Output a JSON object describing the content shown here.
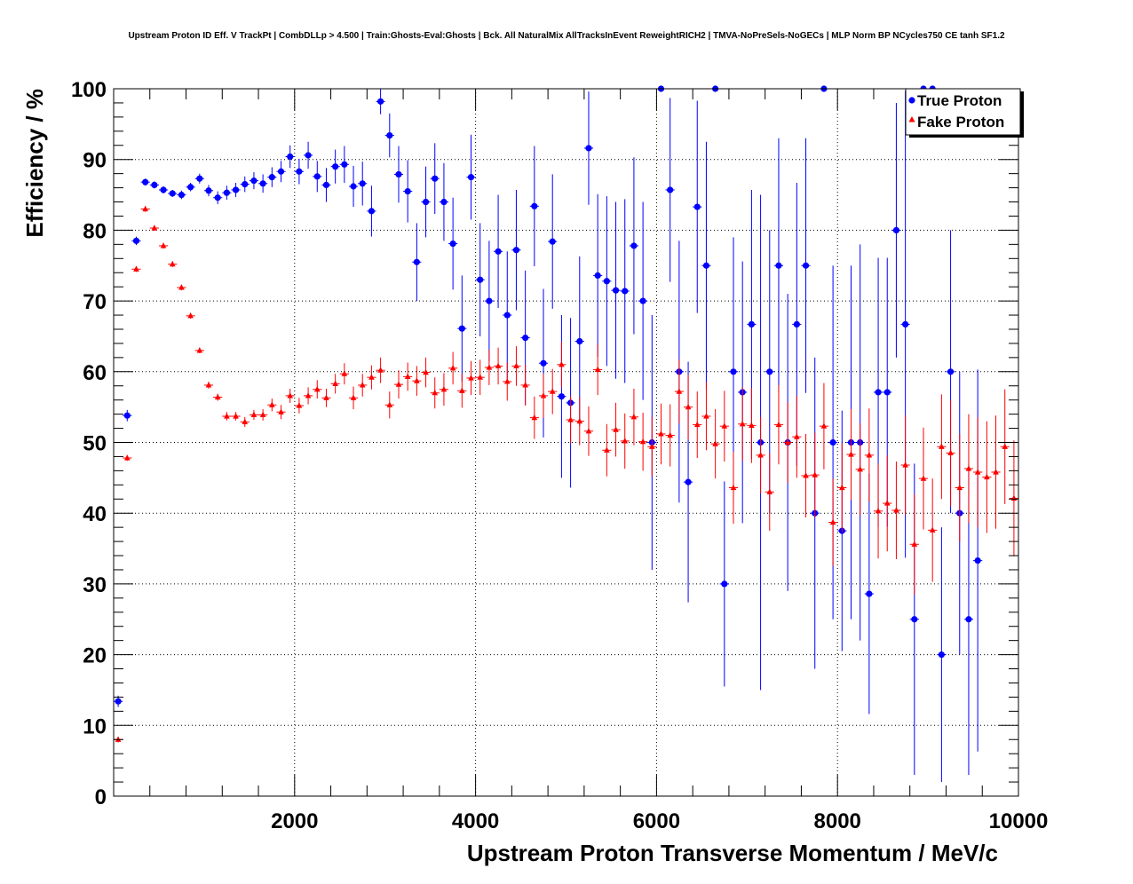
{
  "chart_data": {
    "type": "scatter",
    "title": "Upstream Proton ID Eff. V TrackPt | CombDLLp > 4.500 | Train:Ghosts-Eval:Ghosts | Bck. All NaturalMix AllTracksInEvent ReweightRICH2 | TMVA-NoPreSels-NoGECs | MLP Norm BP NCycles750 CE tanh SF1.2",
    "xlabel": "Upstream Proton Transverse Momentum / MeV/c",
    "ylabel": "Efficiency / %",
    "xlim": [
      0,
      10000
    ],
    "ylim": [
      0,
      100
    ],
    "x_ticks": [
      2000,
      4000,
      6000,
      8000,
      10000
    ],
    "y_ticks": [
      0,
      10,
      20,
      30,
      40,
      50,
      60,
      70,
      80,
      90,
      100
    ],
    "grid": true,
    "legend_position": "top-right",
    "bin_width": 100,
    "series": [
      {
        "name": "True Proton",
        "color": "#0000ff",
        "marker": "circle",
        "points": [
          [
            50,
            13.4,
            0.8
          ],
          [
            150,
            53.8,
            0.8
          ],
          [
            250,
            78.5,
            0.6
          ],
          [
            350,
            86.8,
            0.5
          ],
          [
            450,
            86.4,
            0.5
          ],
          [
            550,
            85.7,
            0.5
          ],
          [
            650,
            85.2,
            0.5
          ],
          [
            750,
            85.0,
            0.6
          ],
          [
            850,
            86.1,
            0.6
          ],
          [
            950,
            87.3,
            0.7
          ],
          [
            1050,
            85.6,
            0.8
          ],
          [
            1150,
            84.6,
            0.9
          ],
          [
            1250,
            85.3,
            1.0
          ],
          [
            1350,
            85.7,
            1.0
          ],
          [
            1450,
            86.5,
            1.1
          ],
          [
            1550,
            87.0,
            1.2
          ],
          [
            1650,
            86.6,
            1.3
          ],
          [
            1750,
            87.5,
            1.4
          ],
          [
            1850,
            88.3,
            1.5
          ],
          [
            1950,
            90.4,
            1.6
          ],
          [
            2050,
            88.3,
            1.8
          ],
          [
            2150,
            90.6,
            1.9
          ],
          [
            2250,
            87.6,
            2.2
          ],
          [
            2350,
            86.4,
            2.4
          ],
          [
            2450,
            89.0,
            2.4
          ],
          [
            2550,
            89.3,
            2.6
          ],
          [
            2650,
            86.2,
            2.9
          ],
          [
            2750,
            86.6,
            3.1
          ],
          [
            2850,
            82.7,
            3.6
          ],
          [
            2950,
            98.2,
            1.8
          ],
          [
            3050,
            93.4,
            3.1
          ],
          [
            3150,
            87.9,
            4.0
          ],
          [
            3250,
            85.5,
            4.4
          ],
          [
            3350,
            75.5,
            5.5
          ],
          [
            3450,
            84.0,
            5.0
          ],
          [
            3550,
            87.3,
            5.0
          ],
          [
            3650,
            84.0,
            5.5
          ],
          [
            3750,
            78.1,
            6.5
          ],
          [
            3850,
            66.1,
            7.5
          ],
          [
            3950,
            87.5,
            6.0
          ],
          [
            4050,
            73.0,
            8.0
          ],
          [
            4150,
            70.0,
            8.5
          ],
          [
            4250,
            77.0,
            8.0
          ],
          [
            4350,
            68.0,
            9.0
          ],
          [
            4450,
            77.2,
            8.5
          ],
          [
            4550,
            64.8,
            9.5
          ],
          [
            4650,
            83.4,
            8.5
          ],
          [
            4750,
            61.2,
            10.5
          ],
          [
            4850,
            78.4,
            9.5
          ],
          [
            4950,
            56.5,
            11.5
          ],
          [
            5050,
            55.6,
            12.0
          ],
          [
            5150,
            64.3,
            12.0
          ],
          [
            5250,
            91.6,
            8.0
          ],
          [
            5350,
            73.6,
            11.5
          ],
          [
            5450,
            72.8,
            12.0
          ],
          [
            5550,
            71.5,
            12.5
          ],
          [
            5650,
            71.4,
            13.0
          ],
          [
            5750,
            77.8,
            12.5
          ],
          [
            5850,
            70.0,
            14.0
          ],
          [
            5950,
            50.0,
            18.0
          ],
          [
            6050,
            100.0,
            0.0
          ],
          [
            6150,
            85.7,
            13.0
          ],
          [
            6250,
            60.0,
            18.5
          ],
          [
            6350,
            44.4,
            17.0
          ],
          [
            6450,
            83.3,
            15.0
          ],
          [
            6550,
            75.0,
            17.5
          ],
          [
            6650,
            100.0,
            0.0
          ],
          [
            6750,
            30.0,
            14.5
          ],
          [
            6850,
            60.0,
            19.0
          ],
          [
            6950,
            57.1,
            18.5
          ],
          [
            7050,
            66.7,
            19.0
          ],
          [
            7150,
            50.0,
            35.0
          ],
          [
            7250,
            60.0,
            20.0
          ],
          [
            7350,
            75.0,
            18.0
          ],
          [
            7450,
            50.0,
            21.0
          ],
          [
            7550,
            66.7,
            20.0
          ],
          [
            7650,
            75.0,
            18.0
          ],
          [
            7750,
            40.0,
            22.0
          ],
          [
            7850,
            100.0,
            0.0
          ],
          [
            7950,
            50.0,
            25.0
          ],
          [
            8050,
            37.5,
            17.0
          ],
          [
            8150,
            50.0,
            25.0
          ],
          [
            8250,
            50.0,
            28.0
          ],
          [
            8350,
            28.6,
            17.0
          ],
          [
            8450,
            57.1,
            19.0
          ],
          [
            8550,
            57.1,
            19.0
          ],
          [
            8650,
            80.0,
            18.0
          ],
          [
            8750,
            66.7,
            33.0
          ],
          [
            8850,
            25.0,
            22.0
          ],
          [
            8950,
            100.0,
            0.0
          ],
          [
            9050,
            100.0,
            0.0
          ],
          [
            9150,
            20.0,
            18.0
          ],
          [
            9250,
            60.0,
            20.0
          ],
          [
            9350,
            40.0,
            20.0
          ],
          [
            9450,
            25.0,
            22.0
          ],
          [
            9550,
            33.3,
            27.0
          ]
        ]
      },
      {
        "name": "Fake Proton",
        "color": "#ff0000",
        "marker": "triangle",
        "points": [
          [
            50,
            8.0,
            0.4
          ],
          [
            150,
            47.8,
            0.4
          ],
          [
            250,
            74.5,
            0.4
          ],
          [
            350,
            83.0,
            0.4
          ],
          [
            450,
            80.3,
            0.4
          ],
          [
            550,
            77.8,
            0.4
          ],
          [
            650,
            75.2,
            0.4
          ],
          [
            750,
            71.9,
            0.4
          ],
          [
            850,
            67.9,
            0.4
          ],
          [
            950,
            63.0,
            0.4
          ],
          [
            1050,
            58.1,
            0.5
          ],
          [
            1150,
            56.4,
            0.5
          ],
          [
            1250,
            53.7,
            0.6
          ],
          [
            1350,
            53.7,
            0.6
          ],
          [
            1450,
            52.9,
            0.7
          ],
          [
            1550,
            53.9,
            0.7
          ],
          [
            1650,
            53.9,
            0.8
          ],
          [
            1750,
            55.3,
            0.9
          ],
          [
            1850,
            54.3,
            1.0
          ],
          [
            1950,
            56.6,
            1.0
          ],
          [
            2050,
            55.2,
            1.1
          ],
          [
            2150,
            56.6,
            1.2
          ],
          [
            2250,
            57.5,
            1.3
          ],
          [
            2350,
            56.3,
            1.3
          ],
          [
            2450,
            58.3,
            1.4
          ],
          [
            2550,
            59.7,
            1.5
          ],
          [
            2650,
            56.3,
            1.6
          ],
          [
            2750,
            58.1,
            1.6
          ],
          [
            2850,
            59.2,
            1.7
          ],
          [
            2950,
            60.2,
            1.8
          ],
          [
            3050,
            55.3,
            1.9
          ],
          [
            3150,
            58.2,
            2.0
          ],
          [
            3250,
            59.3,
            2.0
          ],
          [
            3350,
            58.7,
            2.1
          ],
          [
            3450,
            59.9,
            2.1
          ],
          [
            3550,
            57.0,
            2.2
          ],
          [
            3650,
            57.5,
            2.3
          ],
          [
            3750,
            60.5,
            2.3
          ],
          [
            3850,
            57.3,
            2.4
          ],
          [
            3950,
            59.1,
            2.4
          ],
          [
            4050,
            59.2,
            2.5
          ],
          [
            4150,
            60.6,
            2.5
          ],
          [
            4250,
            60.8,
            2.6
          ],
          [
            4350,
            58.6,
            2.7
          ],
          [
            4450,
            60.8,
            2.8
          ],
          [
            4550,
            58.1,
            2.9
          ],
          [
            4650,
            53.5,
            3.0
          ],
          [
            4750,
            56.6,
            3.1
          ],
          [
            4850,
            57.2,
            3.2
          ],
          [
            4950,
            61.0,
            3.2
          ],
          [
            5050,
            53.2,
            3.3
          ],
          [
            5150,
            53.0,
            3.4
          ],
          [
            5250,
            51.6,
            3.5
          ],
          [
            5350,
            60.3,
            3.6
          ],
          [
            5450,
            48.9,
            3.7
          ],
          [
            5550,
            51.8,
            3.8
          ],
          [
            5650,
            50.2,
            3.9
          ],
          [
            5750,
            53.6,
            4.0
          ],
          [
            5850,
            50.1,
            4.1
          ],
          [
            5950,
            49.4,
            4.2
          ],
          [
            6050,
            51.2,
            4.3
          ],
          [
            6150,
            51.0,
            4.4
          ],
          [
            6250,
            57.2,
            4.5
          ],
          [
            6350,
            55.0,
            4.6
          ],
          [
            6450,
            52.5,
            4.7
          ],
          [
            6550,
            53.7,
            4.8
          ],
          [
            6650,
            49.8,
            4.9
          ],
          [
            6750,
            52.3,
            5.0
          ],
          [
            6850,
            43.6,
            5.1
          ],
          [
            6950,
            52.6,
            5.2
          ],
          [
            7050,
            52.4,
            5.3
          ],
          [
            7150,
            48.2,
            5.4
          ],
          [
            7250,
            43.0,
            5.5
          ],
          [
            7350,
            52.5,
            5.6
          ],
          [
            7450,
            50.0,
            5.7
          ],
          [
            7550,
            50.8,
            5.8
          ],
          [
            7650,
            45.3,
            5.9
          ],
          [
            7750,
            45.4,
            6.0
          ],
          [
            7850,
            52.3,
            6.1
          ],
          [
            7950,
            38.7,
            6.2
          ],
          [
            8050,
            43.6,
            6.3
          ],
          [
            8150,
            48.3,
            6.4
          ],
          [
            8250,
            46.2,
            6.5
          ],
          [
            8350,
            48.2,
            6.6
          ],
          [
            8450,
            40.3,
            6.7
          ],
          [
            8550,
            41.4,
            6.8
          ],
          [
            8650,
            40.4,
            6.9
          ],
          [
            8750,
            46.8,
            7.0
          ],
          [
            8850,
            35.6,
            7.1
          ],
          [
            8950,
            44.9,
            7.2
          ],
          [
            9050,
            37.6,
            7.3
          ],
          [
            9150,
            49.4,
            7.4
          ],
          [
            9250,
            48.5,
            7.5
          ],
          [
            9350,
            43.6,
            7.6
          ],
          [
            9450,
            46.3,
            7.7
          ],
          [
            9550,
            45.8,
            7.8
          ],
          [
            9650,
            45.1,
            7.9
          ],
          [
            9750,
            45.8,
            8.0
          ],
          [
            9850,
            49.4,
            8.1
          ],
          [
            9950,
            42.1,
            8.2
          ]
        ]
      }
    ]
  }
}
